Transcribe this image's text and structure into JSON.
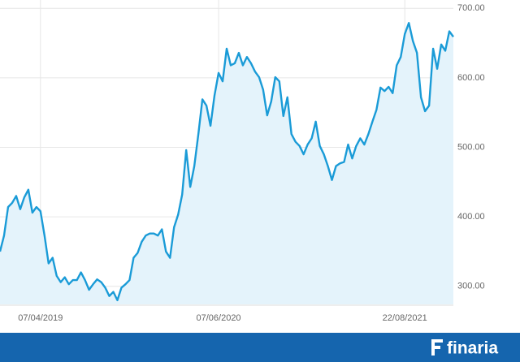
{
  "chart_data": {
    "type": "area",
    "categories": [
      null,
      null,
      null,
      null,
      null,
      null,
      null,
      null,
      null,
      null,
      "07/04/2019",
      null,
      null,
      null,
      null,
      null,
      null,
      null,
      null,
      null,
      null,
      null,
      null,
      null,
      null,
      null,
      null,
      null,
      null,
      null,
      null,
      null,
      null,
      null,
      null,
      null,
      null,
      null,
      null,
      null,
      null,
      null,
      null,
      null,
      null,
      null,
      null,
      null,
      null,
      null,
      null,
      null,
      null,
      null,
      "07/06/2020",
      null,
      null,
      null,
      null,
      null,
      null,
      null,
      null,
      null,
      null,
      null,
      null,
      null,
      null,
      null,
      null,
      null,
      null,
      null,
      null,
      null,
      null,
      null,
      null,
      null,
      null,
      null,
      null,
      null,
      null,
      null,
      null,
      null,
      null,
      null,
      null,
      null,
      null,
      null,
      null,
      null,
      null,
      null,
      null,
      null,
      "22/08/2021",
      null,
      null,
      null,
      null,
      null,
      null,
      null,
      null,
      null,
      null,
      null,
      null
    ],
    "values": [
      350,
      373,
      414,
      420,
      430,
      411,
      428,
      439,
      406,
      414,
      408,
      373,
      333,
      341,
      315,
      306,
      313,
      303,
      309,
      309,
      320,
      309,
      295,
      303,
      310,
      306,
      298,
      286,
      292,
      280,
      298,
      303,
      309,
      341,
      348,
      364,
      373,
      376,
      376,
      373,
      382,
      350,
      341,
      385,
      403,
      432,
      496,
      443,
      473,
      519,
      569,
      560,
      531,
      575,
      607,
      595,
      642,
      618,
      621,
      636,
      618,
      630,
      621,
      609,
      601,
      583,
      546,
      566,
      601,
      595,
      545,
      572,
      519,
      508,
      502,
      490,
      504,
      513,
      537,
      502,
      490,
      473,
      453,
      473,
      477,
      479,
      504,
      484,
      502,
      513,
      504,
      519,
      537,
      554,
      586,
      581,
      587,
      578,
      618,
      630,
      663,
      679,
      653,
      636,
      572,
      552,
      560,
      642,
      613,
      648,
      639,
      667,
      659
    ],
    "color": "#1a9bd7",
    "fill": "#e4f3fb",
    "ylim": [
      274,
      712
    ],
    "yticks": [
      {
        "value": 300,
        "label": "300.00"
      },
      {
        "value": 400,
        "label": "400.00"
      },
      {
        "value": 500,
        "label": "500.00"
      },
      {
        "value": 600,
        "label": "600.00"
      },
      {
        "value": 700,
        "label": "700.00"
      }
    ],
    "grid": true
  },
  "footer": {
    "brand": "finaria"
  }
}
